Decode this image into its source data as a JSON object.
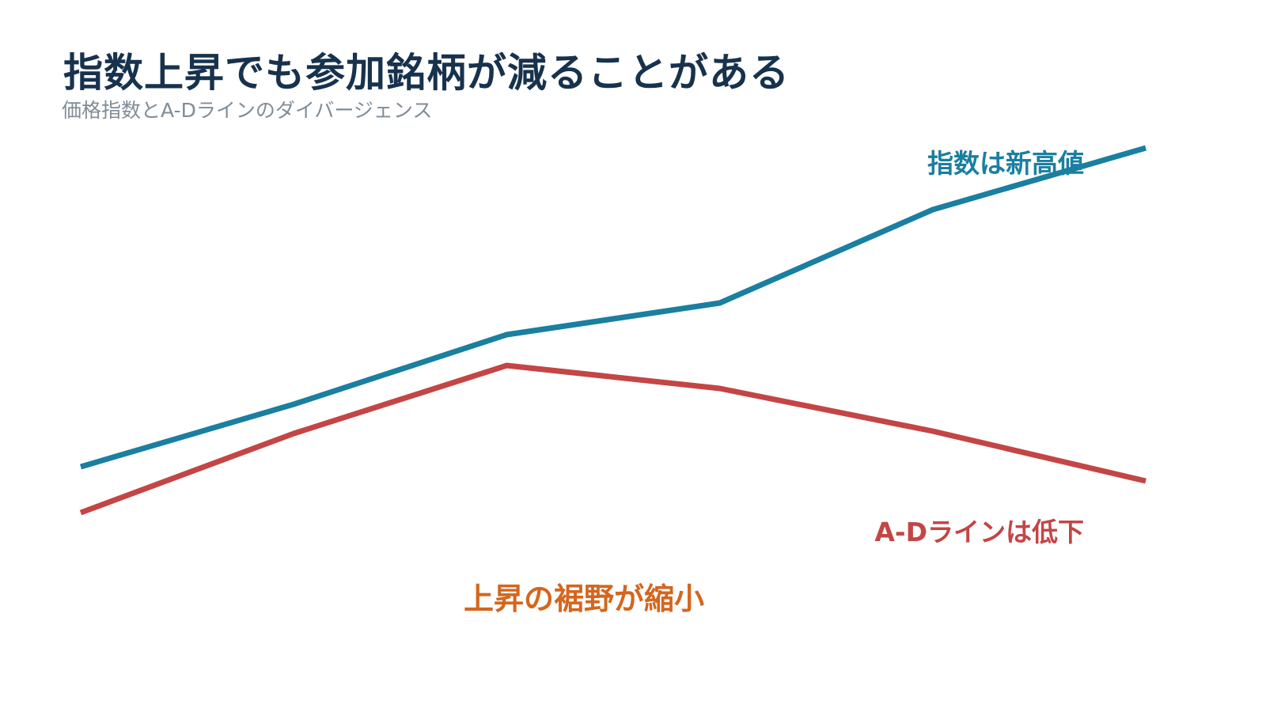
{
  "title": "指数上昇でも参加銘柄が減ることがある",
  "subtitle": "価格指数とA-Dラインのダイバージェンス",
  "chart_data": {
    "type": "line",
    "x": [
      1,
      2,
      3,
      4,
      5,
      6
    ],
    "series": [
      {
        "name": "指数は新高値",
        "values": [
          590,
          511,
          423,
          383,
          265,
          187
        ],
        "color": "#1a7fa0"
      },
      {
        "name": "A-Dラインは低下",
        "values": [
          648,
          548,
          462,
          491,
          545,
          608
        ],
        "color": "#c44545"
      }
    ],
    "annotations": [
      {
        "text": "上昇の裾野が縮小",
        "color": "#d4661e"
      }
    ],
    "xlabel": "",
    "ylabel": "",
    "grid": false,
    "legend": "inline"
  }
}
